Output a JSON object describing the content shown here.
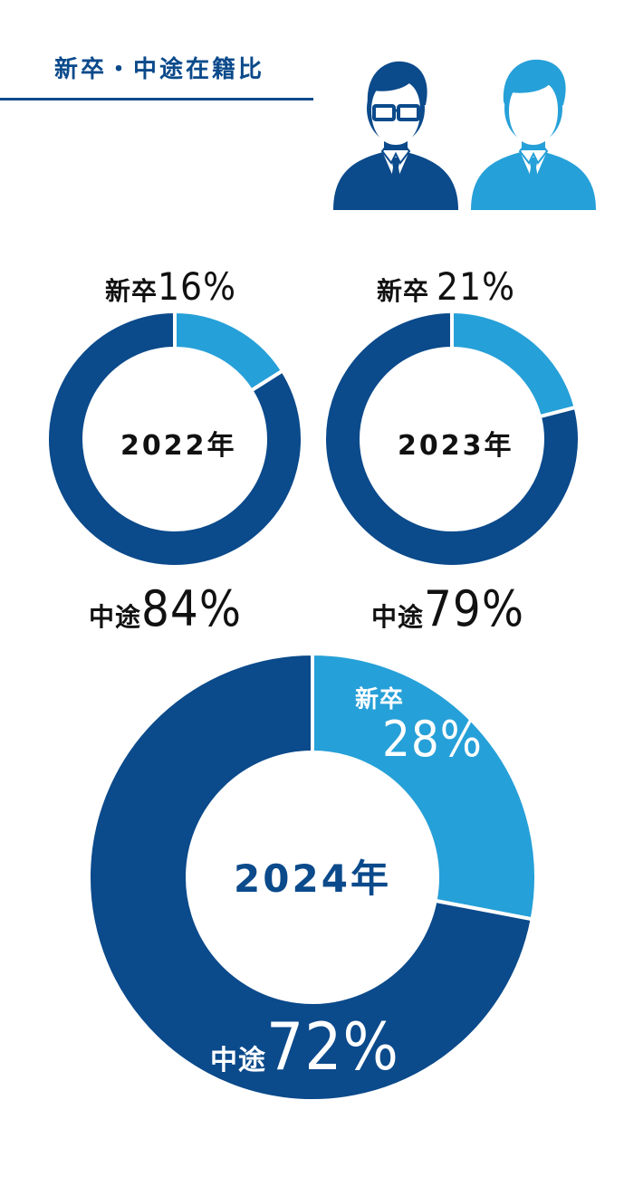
{
  "title": "新卒・中途在籍比",
  "colors": {
    "navy": "#0b4a8b",
    "light_blue": "#26a0d8",
    "dark_text": "#111111"
  },
  "chart_data": [
    {
      "type": "pie",
      "center_label": "2022年",
      "series": [
        {
          "name": "新卒",
          "value": 16
        },
        {
          "name": "中途",
          "value": 84
        }
      ],
      "unit": "%"
    },
    {
      "type": "pie",
      "center_label": "2023年",
      "series": [
        {
          "name": "新卒",
          "value": 21
        },
        {
          "name": "中途",
          "value": 79
        }
      ],
      "unit": "%"
    },
    {
      "type": "pie",
      "center_label": "2024年",
      "series": [
        {
          "name": "新卒",
          "value": 28
        },
        {
          "name": "中途",
          "value": 72
        }
      ],
      "unit": "%"
    }
  ],
  "labels": {
    "c2022": {
      "shinsotsu": "新卒",
      "shinsotsu_val": "16%",
      "chuto": "中途",
      "chuto_val": "84%"
    },
    "c2023": {
      "shinsotsu": "新卒",
      "shinsotsu_val": "21%",
      "chuto": "中途",
      "chuto_val": "79%"
    },
    "c2024": {
      "shinsotsu": "新卒",
      "shinsotsu_val": "28%",
      "chuto": "中途",
      "chuto_val": "72%"
    }
  },
  "icons": [
    "person-with-glasses-icon",
    "person-icon"
  ]
}
